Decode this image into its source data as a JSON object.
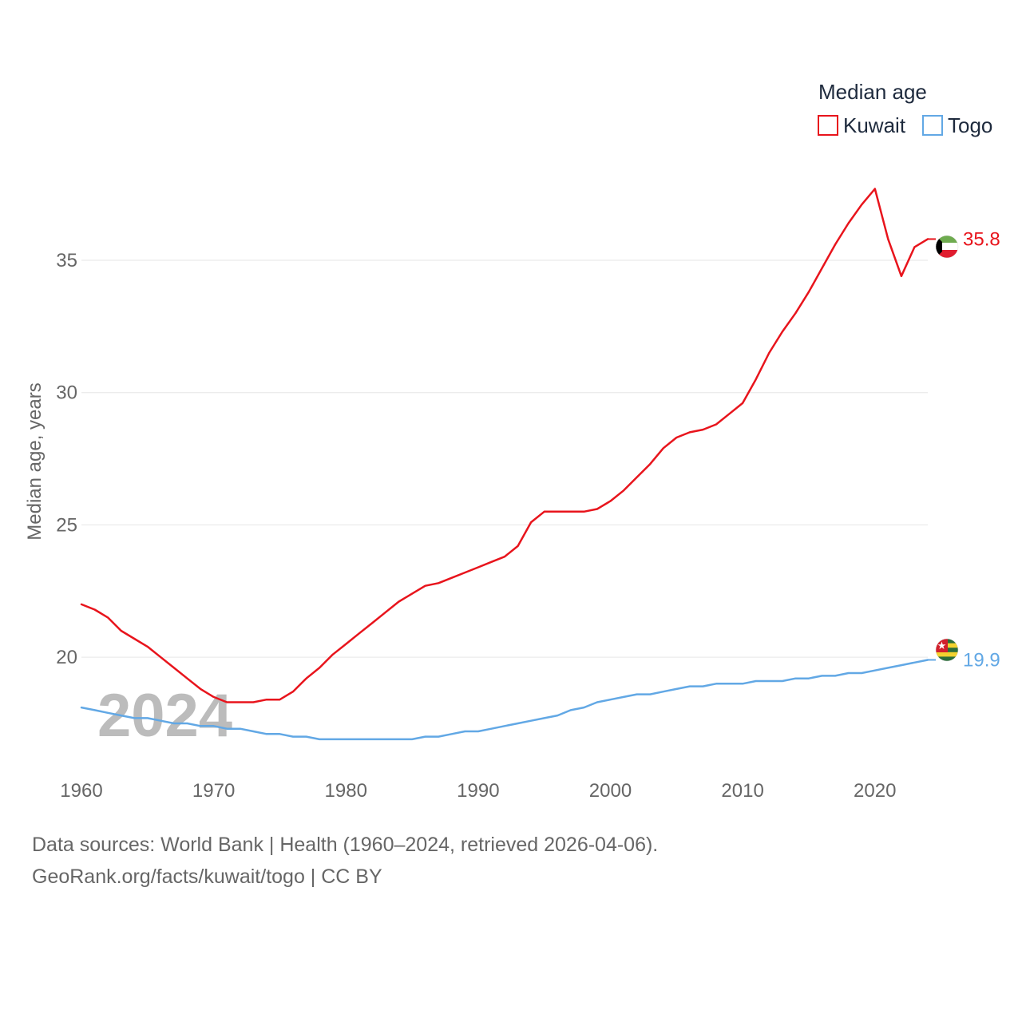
{
  "chart_data": {
    "type": "line",
    "ylabel": "Median age, years",
    "xlim": [
      1960,
      2024
    ],
    "ylim": [
      15.6,
      38.8
    ],
    "yticks": [
      20,
      25,
      30,
      35
    ],
    "xticks": [
      1960,
      1970,
      1980,
      1990,
      2000,
      2010,
      2020
    ],
    "legend": {
      "title": "Median age",
      "placement": "top-right"
    },
    "year_label": "2024",
    "x": [
      1960,
      1961,
      1962,
      1963,
      1964,
      1965,
      1966,
      1967,
      1968,
      1969,
      1970,
      1971,
      1972,
      1973,
      1974,
      1975,
      1976,
      1977,
      1978,
      1979,
      1980,
      1981,
      1982,
      1983,
      1984,
      1985,
      1986,
      1987,
      1988,
      1989,
      1990,
      1991,
      1992,
      1993,
      1994,
      1995,
      1996,
      1997,
      1998,
      1999,
      2000,
      2001,
      2002,
      2003,
      2004,
      2005,
      2006,
      2007,
      2008,
      2009,
      2010,
      2011,
      2012,
      2013,
      2014,
      2015,
      2016,
      2017,
      2018,
      2019,
      2020,
      2021,
      2022,
      2023,
      2024
    ],
    "series": [
      {
        "name": "Kuwait",
        "color": "#e8141c",
        "end_label": "35.8",
        "flag": "kuwait-flag-icon",
        "values": [
          22.0,
          21.8,
          21.5,
          21.0,
          20.7,
          20.4,
          20.0,
          19.6,
          19.2,
          18.8,
          18.5,
          18.3,
          18.3,
          18.3,
          18.4,
          18.4,
          18.7,
          19.2,
          19.6,
          20.1,
          20.5,
          20.9,
          21.3,
          21.7,
          22.1,
          22.4,
          22.7,
          22.8,
          23.0,
          23.2,
          23.4,
          23.6,
          23.8,
          24.2,
          25.1,
          25.5,
          25.5,
          25.5,
          25.5,
          25.6,
          25.9,
          26.3,
          26.8,
          27.3,
          27.9,
          28.3,
          28.5,
          28.6,
          28.8,
          29.2,
          29.6,
          30.5,
          31.5,
          32.3,
          33.0,
          33.8,
          34.7,
          35.6,
          36.4,
          37.1,
          37.7,
          35.8,
          34.4,
          35.5,
          35.8
        ]
      },
      {
        "name": "Togo",
        "color": "#62a8e5",
        "end_label": "19.9",
        "flag": "togo-flag-icon",
        "values": [
          18.1,
          18.0,
          17.9,
          17.8,
          17.7,
          17.7,
          17.6,
          17.5,
          17.5,
          17.4,
          17.4,
          17.3,
          17.3,
          17.2,
          17.1,
          17.1,
          17.0,
          17.0,
          16.9,
          16.9,
          16.9,
          16.9,
          16.9,
          16.9,
          16.9,
          16.9,
          17.0,
          17.0,
          17.1,
          17.2,
          17.2,
          17.3,
          17.4,
          17.5,
          17.6,
          17.7,
          17.8,
          18.0,
          18.1,
          18.3,
          18.4,
          18.5,
          18.6,
          18.6,
          18.7,
          18.8,
          18.9,
          18.9,
          19.0,
          19.0,
          19.0,
          19.1,
          19.1,
          19.1,
          19.2,
          19.2,
          19.3,
          19.3,
          19.4,
          19.4,
          19.5,
          19.6,
          19.7,
          19.8,
          19.9
        ]
      }
    ]
  },
  "footer": {
    "line1": "Data sources: World Bank | Health (1960–2024, retrieved 2026-04-06).",
    "line2": "GeoRank.org/facts/kuwait/togo | CC BY"
  }
}
